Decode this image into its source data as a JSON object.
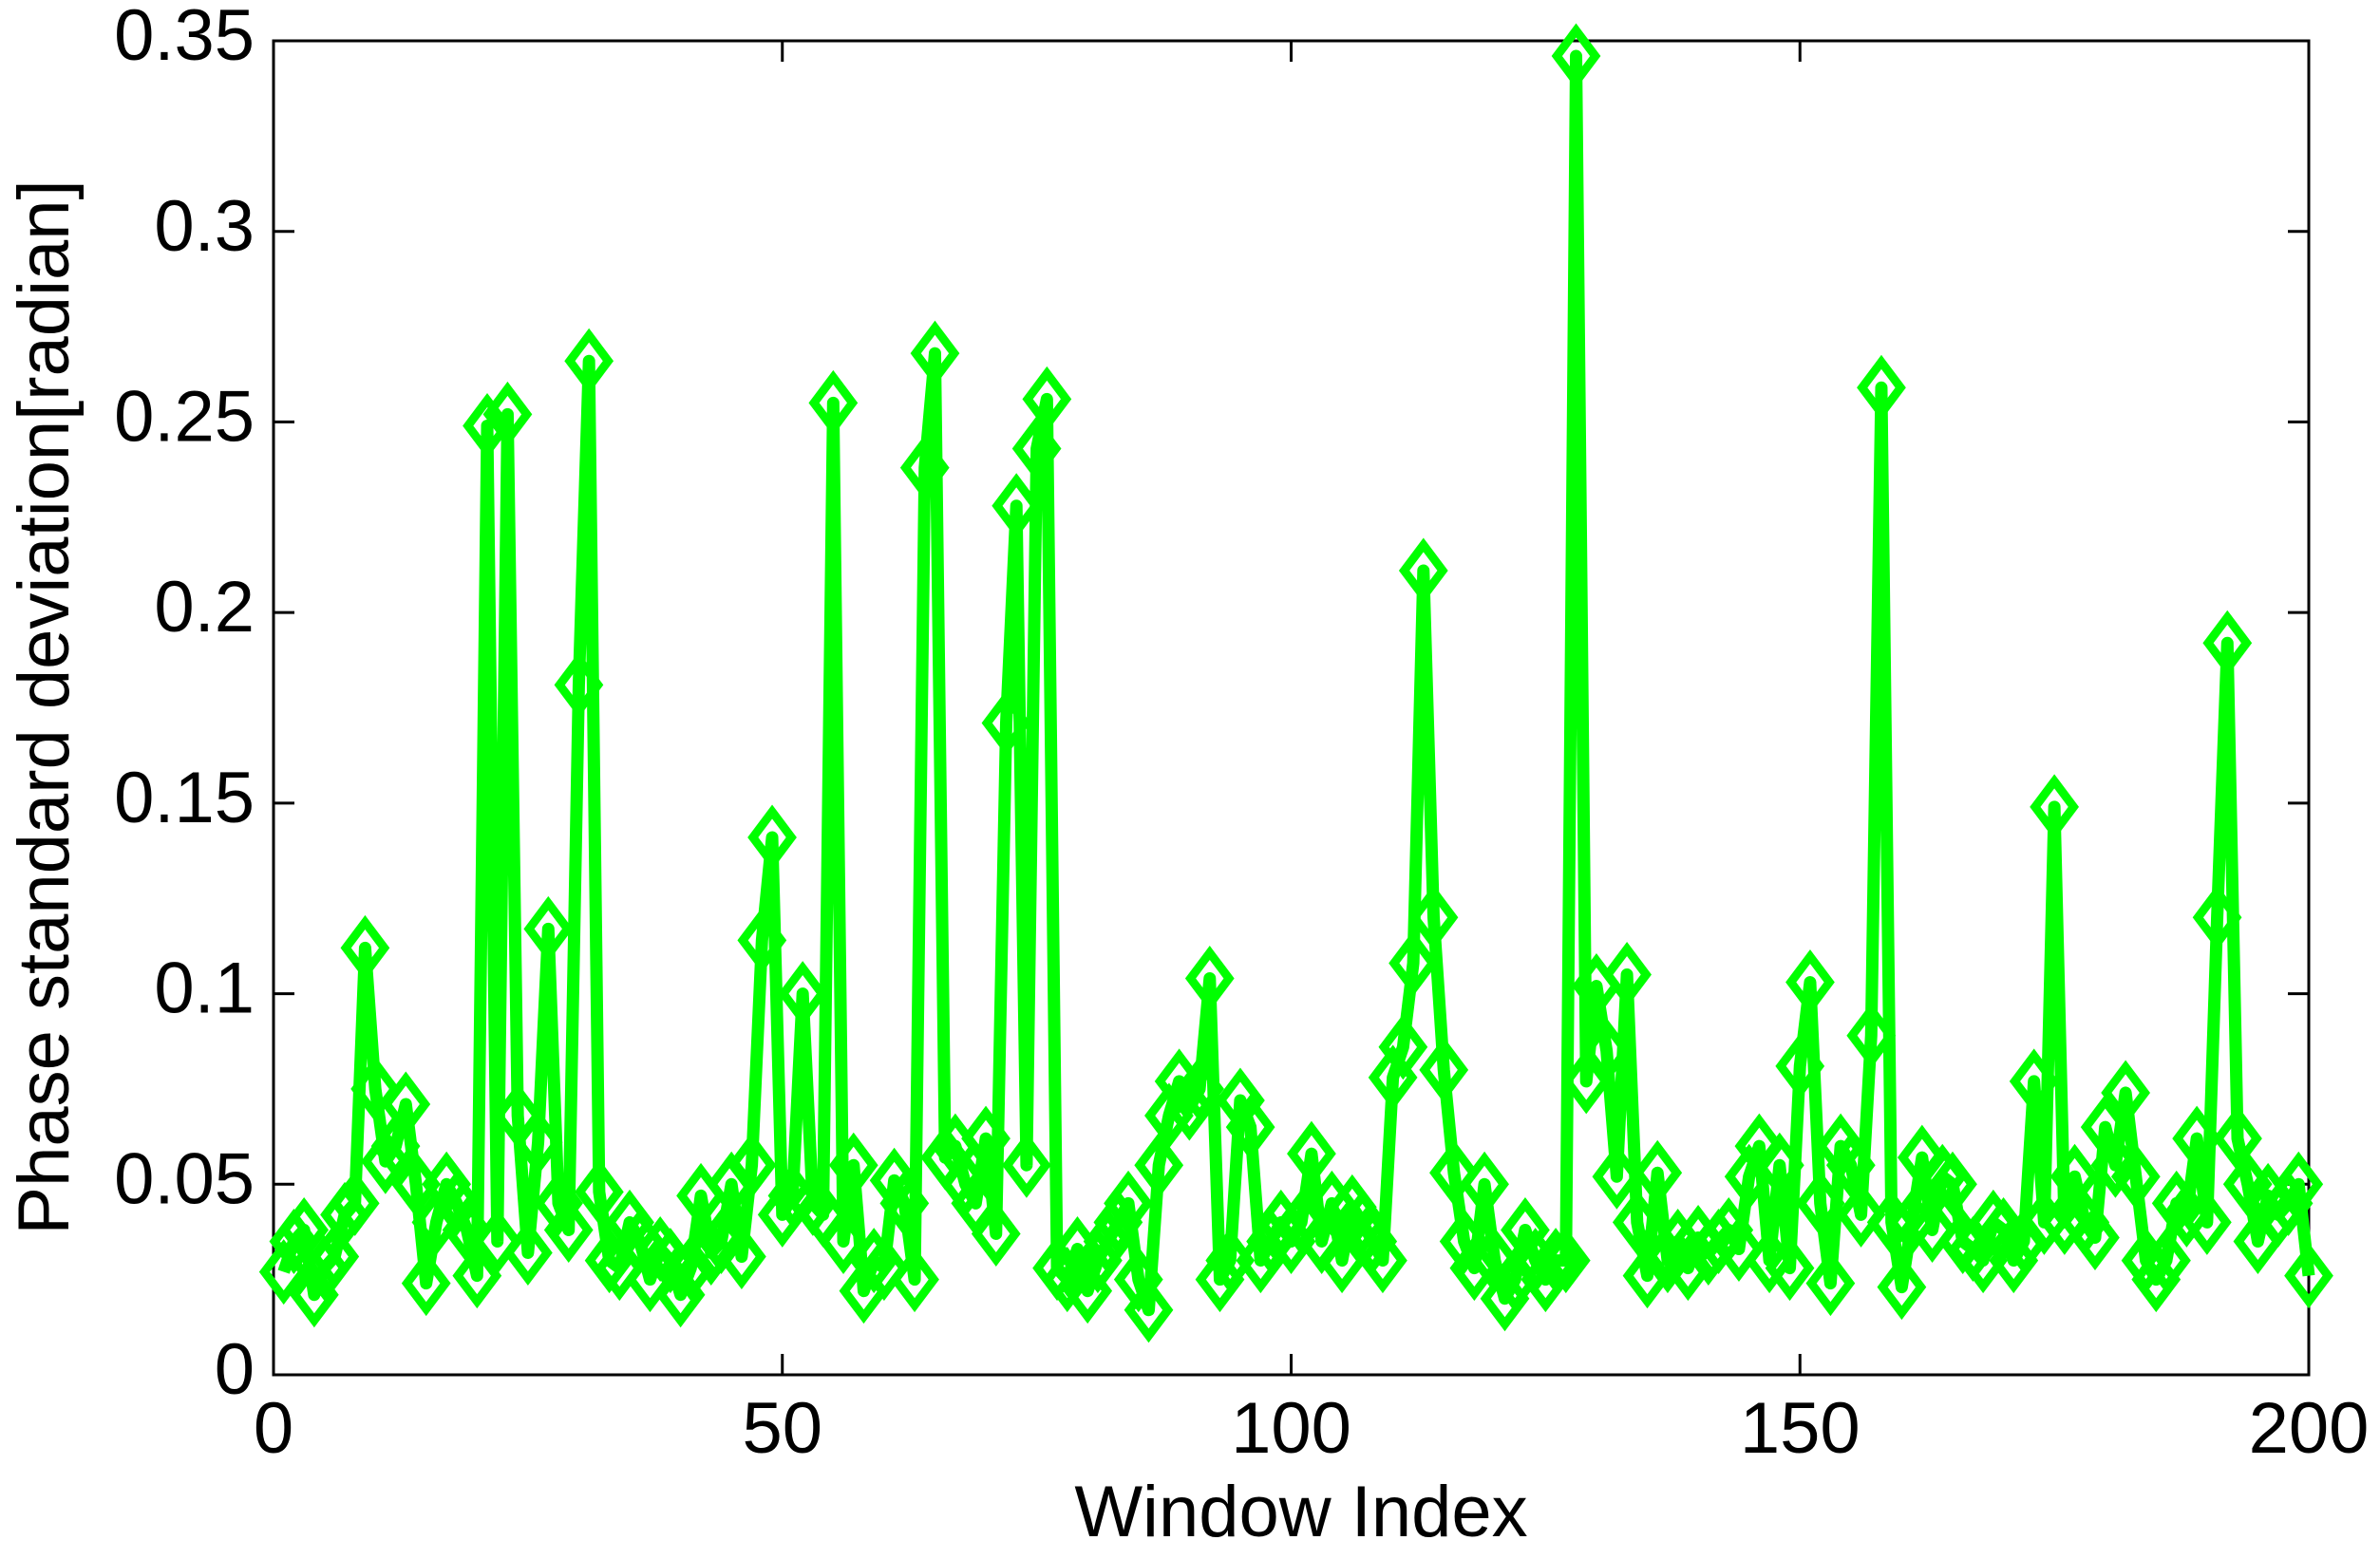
{
  "chart_data": {
    "type": "line",
    "xlabel": "Window Index",
    "ylabel": "Phase standard deviation[radian]",
    "color": "#00ff00",
    "marker": "diamond",
    "x": [
      1,
      2,
      3,
      4,
      5,
      6,
      7,
      8,
      9,
      10,
      11,
      12,
      13,
      14,
      15,
      16,
      17,
      18,
      19,
      20,
      21,
      22,
      23,
      24,
      25,
      26,
      27,
      28,
      29,
      30,
      31,
      32,
      33,
      34,
      35,
      36,
      37,
      38,
      39,
      40,
      41,
      42,
      43,
      44,
      45,
      46,
      47,
      48,
      49,
      50,
      51,
      52,
      53,
      54,
      55,
      56,
      57,
      58,
      59,
      60,
      61,
      62,
      63,
      64,
      65,
      66,
      67,
      68,
      69,
      70,
      71,
      72,
      73,
      74,
      75,
      76,
      77,
      78,
      79,
      80,
      81,
      82,
      83,
      84,
      85,
      86,
      87,
      88,
      89,
      90,
      91,
      92,
      93,
      94,
      95,
      96,
      97,
      98,
      99,
      100,
      101,
      102,
      103,
      104,
      105,
      106,
      107,
      108,
      109,
      110,
      111,
      112,
      113,
      114,
      115,
      116,
      117,
      118,
      119,
      120,
      121,
      122,
      123,
      124,
      125,
      126,
      127,
      128,
      129,
      130,
      131,
      132,
      133,
      134,
      135,
      136,
      137,
      138,
      139,
      140,
      141,
      142,
      143,
      144,
      145,
      146,
      147,
      148,
      149,
      150,
      151,
      152,
      153,
      154,
      155,
      156,
      157,
      158,
      159,
      160,
      161,
      162,
      163,
      164,
      165,
      166,
      167,
      168,
      169,
      170,
      171,
      172,
      173,
      174,
      175,
      176,
      177,
      178,
      179,
      180,
      181,
      182,
      183,
      184,
      185,
      186,
      187,
      188,
      189,
      190,
      191,
      192,
      193,
      194,
      195,
      196,
      197,
      198,
      199,
      200
    ],
    "values": [
      0.027,
      0.035,
      0.038,
      0.021,
      0.028,
      0.031,
      0.042,
      0.045,
      0.112,
      0.075,
      0.056,
      0.06,
      0.071,
      0.05,
      0.024,
      0.04,
      0.05,
      0.045,
      0.038,
      0.026,
      0.249,
      0.035,
      0.252,
      0.068,
      0.032,
      0.061,
      0.117,
      0.045,
      0.038,
      0.181,
      0.266,
      0.048,
      0.03,
      0.028,
      0.04,
      0.035,
      0.025,
      0.033,
      0.03,
      0.021,
      0.028,
      0.047,
      0.032,
      0.035,
      0.05,
      0.031,
      0.055,
      0.114,
      0.141,
      0.042,
      0.047,
      0.1,
      0.045,
      0.042,
      0.255,
      0.035,
      0.055,
      0.022,
      0.03,
      0.028,
      0.051,
      0.045,
      0.025,
      0.238,
      0.268,
      0.057,
      0.06,
      0.05,
      0.045,
      0.062,
      0.037,
      0.171,
      0.228,
      0.055,
      0.243,
      0.256,
      0.028,
      0.025,
      0.033,
      0.022,
      0.03,
      0.035,
      0.04,
      0.045,
      0.025,
      0.017,
      0.055,
      0.068,
      0.077,
      0.07,
      0.075,
      0.104,
      0.025,
      0.03,
      0.072,
      0.065,
      0.03,
      0.035,
      0.04,
      0.035,
      0.04,
      0.058,
      0.035,
      0.045,
      0.03,
      0.044,
      0.04,
      0.035,
      0.03,
      0.078,
      0.086,
      0.108,
      0.211,
      0.12,
      0.08,
      0.053,
      0.035,
      0.028,
      0.05,
      0.03,
      0.02,
      0.025,
      0.038,
      0.03,
      0.025,
      0.03,
      0.03,
      0.346,
      0.077,
      0.102,
      0.085,
      0.052,
      0.105,
      0.04,
      0.026,
      0.053,
      0.03,
      0.035,
      0.028,
      0.036,
      0.032,
      0.035,
      0.038,
      0.033,
      0.052,
      0.06,
      0.03,
      0.055,
      0.028,
      0.081,
      0.103,
      0.045,
      0.024,
      0.06,
      0.055,
      0.042,
      0.089,
      0.259,
      0.04,
      0.023,
      0.04,
      0.057,
      0.038,
      0.052,
      0.05,
      0.035,
      0.033,
      0.03,
      0.04,
      0.038,
      0.03,
      0.035,
      0.077,
      0.04,
      0.149,
      0.04,
      0.052,
      0.04,
      0.036,
      0.065,
      0.055,
      0.074,
      0.052,
      0.03,
      0.025,
      0.03,
      0.045,
      0.042,
      0.062,
      0.04,
      0.12,
      0.192,
      0.062,
      0.05,
      0.035,
      0.047,
      0.042,
      0.045,
      0.05,
      0.026
    ],
    "xlim": [
      0,
      200
    ],
    "xticks": [
      0,
      50,
      100,
      150,
      200
    ],
    "ylim": [
      0,
      0.35
    ],
    "yticks": [
      0,
      0.05,
      0.1,
      0.15,
      0.2,
      0.25,
      0.3,
      0.35
    ],
    "grid": false
  }
}
